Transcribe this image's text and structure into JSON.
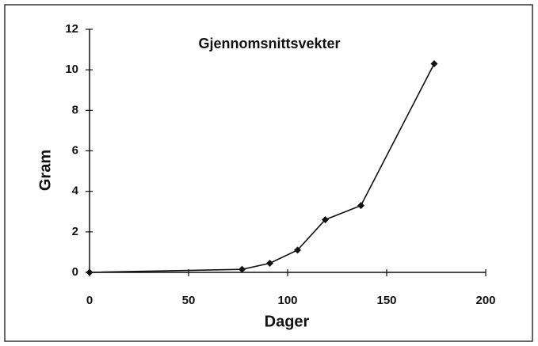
{
  "chart_data": {
    "type": "line",
    "title": "Gjennomsnittsvekter",
    "x_label": "Dager",
    "y_label": "Gram",
    "series": [
      {
        "name": "Gjennomsnittsvekter",
        "color": "#111111",
        "x": [
          0,
          77,
          91,
          105,
          119,
          137,
          174
        ],
        "values": [
          0,
          0.15,
          0.45,
          1.1,
          2.6,
          3.3,
          10.3
        ]
      }
    ],
    "xlim": [
      0,
      200
    ],
    "xticks": [
      0,
      50,
      100,
      150,
      200
    ],
    "ylim": [
      0,
      12
    ],
    "yticks": [
      0,
      2,
      4,
      6,
      8,
      10,
      12
    ],
    "grid": false
  }
}
